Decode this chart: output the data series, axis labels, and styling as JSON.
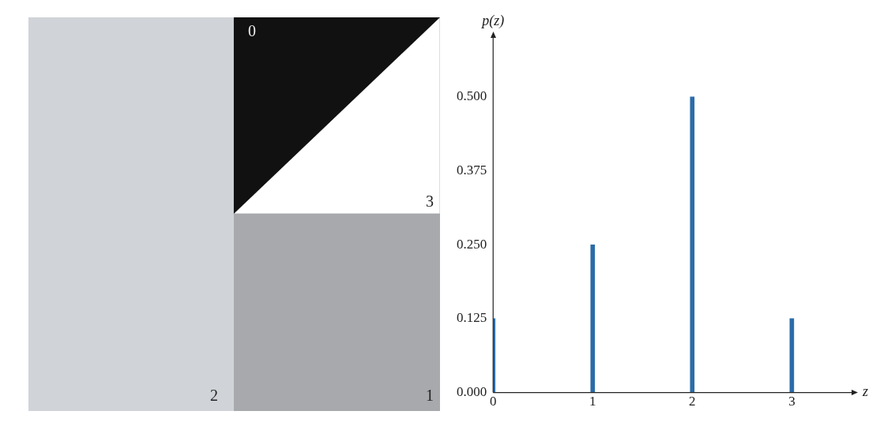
{
  "chart_data": {
    "type": "bar",
    "x": [
      0,
      1,
      2,
      3
    ],
    "values": [
      0.125,
      0.25,
      0.5,
      0.125
    ],
    "color": "#2b6ca8",
    "xlim": [
      0,
      3.6
    ],
    "xticks": [
      0,
      1,
      2,
      3
    ],
    "ylim": [
      0,
      0.6
    ],
    "yticks": [
      {
        "value": 0,
        "label": "0.000"
      },
      {
        "value": 0.125,
        "label": "0.125"
      },
      {
        "value": 0.25,
        "label": "0.250"
      },
      {
        "value": 0.375,
        "label": "0.375"
      },
      {
        "value": 0.5,
        "label": "0.500"
      }
    ],
    "xlabel": "z",
    "ylabel": "p(z)",
    "grid": false,
    "legend": false,
    "annotations": [
      "0",
      "3",
      "2",
      "1"
    ]
  }
}
